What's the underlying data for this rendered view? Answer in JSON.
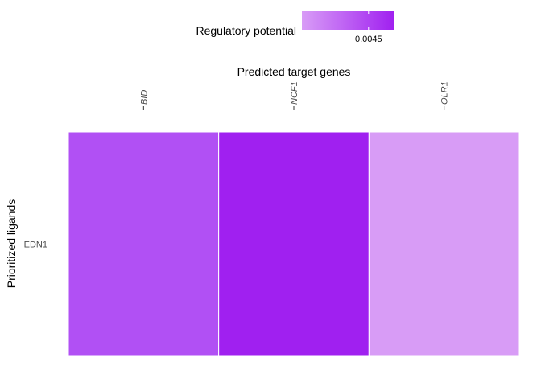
{
  "chart_data": {
    "type": "heatmap",
    "title": "",
    "xlabel": "Predicted target genes",
    "ylabel": "Prioritized ligands",
    "x_axis_position": "top",
    "x_categories": [
      "BID",
      "NCF1",
      "OLR1"
    ],
    "y_categories": [
      "EDN1"
    ],
    "values": [
      [
        0.0044,
        0.0045,
        0.0043
      ]
    ],
    "grid": false,
    "legend": {
      "title": "Regulatory potential",
      "placement": "top",
      "ticks": [
        0.0045
      ],
      "tick_labels": [
        "0.0045"
      ],
      "range": [
        0.0043,
        0.0045
      ],
      "color_low": "#d89cf6",
      "color_high": "#a020f0"
    },
    "tile_colors": [
      "#b150f4",
      "#a020f0",
      "#d89cf6"
    ]
  }
}
